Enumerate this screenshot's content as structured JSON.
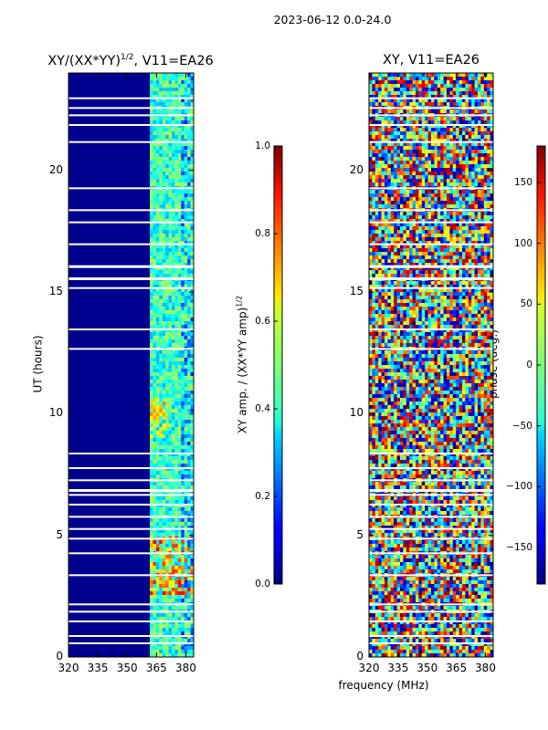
{
  "chart_data": [
    {
      "type": "heatmap",
      "suptitle": "2023-06-12 0.0-24.0",
      "title_text": "XY/(XX*YY)",
      "title_sup": "1/2",
      "title_suffix": ", V11=EA26",
      "ylabel": "UT (hours)",
      "x_ticks": [
        "320",
        "335",
        "350",
        "365",
        "380"
      ],
      "y_ticks": [
        "0",
        "5",
        "10",
        "15",
        "20"
      ],
      "xlim": [
        320,
        384
      ],
      "ylim": [
        0,
        24
      ],
      "colorbar": {
        "label_text": "XY amp. / (XX*YY amp)",
        "label_sup": "1/2",
        "ticks": [
          "0.0",
          "0.2",
          "0.4",
          "0.6",
          "0.8",
          "1.0"
        ],
        "range": [
          0.0,
          1.0
        ],
        "colormap": "jet"
      }
    },
    {
      "type": "heatmap",
      "title": "XY, V11=EA26",
      "xlabel": "frequency (MHz)",
      "x_ticks": [
        "320",
        "335",
        "350",
        "365",
        "380"
      ],
      "y_ticks": [
        "0",
        "5",
        "10",
        "15",
        "20"
      ],
      "xlim": [
        320,
        384
      ],
      "ylim": [
        0,
        24
      ],
      "colorbar": {
        "label": "phase (deg.)",
        "ticks": [
          "150",
          "100",
          "50",
          "0",
          "−50",
          "−100",
          "−150"
        ],
        "range": [
          -180,
          180
        ],
        "colormap": "jet"
      }
    }
  ]
}
